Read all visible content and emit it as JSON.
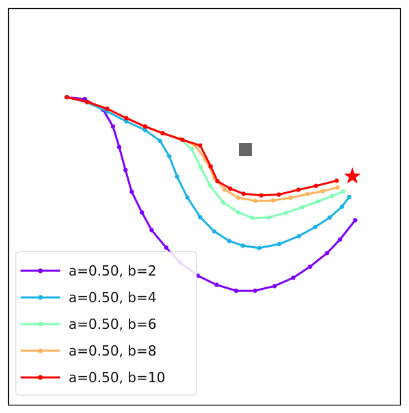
{
  "chart_data": {
    "type": "line",
    "title": "",
    "xlabel": "",
    "ylabel": "",
    "xlim": [
      0,
      100
    ],
    "ylim": [
      0,
      100
    ],
    "grid": false,
    "axes_ticks": false,
    "legend_position": "lower-left",
    "obstacle": {
      "x": 60.5,
      "y": 64.5,
      "color": "#666666",
      "shape": "square"
    },
    "goal": {
      "x": 87.8,
      "y": 57.7,
      "color": "#ff0000",
      "shape": "star"
    },
    "series": [
      {
        "name": "a=0.50, b=2",
        "color": "#7f00ff",
        "points": [
          [
            14.8,
            77.7
          ],
          [
            19.4,
            77.2
          ],
          [
            24.1,
            74.5
          ],
          [
            26.6,
            70.3
          ],
          [
            28.2,
            65.1
          ],
          [
            29.8,
            59.3
          ],
          [
            31.4,
            53.8
          ],
          [
            34.0,
            48.6
          ],
          [
            36.5,
            44.1
          ],
          [
            40.2,
            39.7
          ],
          [
            43.8,
            35.9
          ],
          [
            48.3,
            32.6
          ],
          [
            53.1,
            30.3
          ],
          [
            58.1,
            28.8
          ],
          [
            62.9,
            28.8
          ],
          [
            67.9,
            30.0
          ],
          [
            72.7,
            32.1
          ],
          [
            77.0,
            34.9
          ],
          [
            81.3,
            38.3
          ],
          [
            84.6,
            41.7
          ],
          [
            88.5,
            46.6
          ]
        ]
      },
      {
        "name": "a=0.50, b=4",
        "color": "#1ab2e8",
        "points": [
          [
            14.8,
            77.7
          ],
          [
            20.0,
            76.4
          ],
          [
            25.1,
            74.1
          ],
          [
            30.0,
            71.6
          ],
          [
            34.8,
            69.4
          ],
          [
            38.6,
            66.7
          ],
          [
            41.0,
            62.8
          ],
          [
            43.0,
            57.6
          ],
          [
            45.6,
            52.4
          ],
          [
            48.9,
            47.4
          ],
          [
            52.5,
            43.8
          ],
          [
            56.3,
            41.4
          ],
          [
            59.8,
            40.2
          ],
          [
            64.0,
            39.6
          ],
          [
            69.1,
            40.6
          ],
          [
            74.1,
            42.6
          ],
          [
            78.3,
            44.9
          ],
          [
            82.0,
            47.3
          ],
          [
            85.1,
            50.0
          ],
          [
            87.0,
            52.5
          ]
        ]
      },
      {
        "name": "a=0.50, b=6",
        "color": "#80ffb4",
        "points": [
          [
            14.8,
            77.7
          ],
          [
            20.0,
            76.5
          ],
          [
            25.1,
            74.8
          ],
          [
            30.0,
            72.4
          ],
          [
            34.8,
            70.3
          ],
          [
            39.3,
            68.6
          ],
          [
            43.8,
            67.2
          ],
          [
            46.7,
            64.6
          ],
          [
            49.0,
            60.0
          ],
          [
            51.4,
            55.4
          ],
          [
            54.8,
            51.1
          ],
          [
            58.6,
            48.6
          ],
          [
            62.2,
            47.2
          ],
          [
            66.3,
            47.3
          ],
          [
            70.8,
            48.5
          ],
          [
            75.0,
            49.9
          ],
          [
            79.0,
            51.4
          ],
          [
            82.6,
            52.7
          ],
          [
            85.5,
            53.9
          ]
        ]
      },
      {
        "name": "a=0.50, b=8",
        "color": "#ffb360",
        "points": [
          [
            14.8,
            77.7
          ],
          [
            20.0,
            76.5
          ],
          [
            25.1,
            74.8
          ],
          [
            30.0,
            72.4
          ],
          [
            34.8,
            70.3
          ],
          [
            39.3,
            68.6
          ],
          [
            43.8,
            67.2
          ],
          [
            47.5,
            65.6
          ],
          [
            50.3,
            61.9
          ],
          [
            52.6,
            57.3
          ],
          [
            55.1,
            54.4
          ],
          [
            58.6,
            52.3
          ],
          [
            63.0,
            51.5
          ],
          [
            67.5,
            51.6
          ],
          [
            72.0,
            52.3
          ],
          [
            76.3,
            53.2
          ],
          [
            80.3,
            54.0
          ],
          [
            84.0,
            54.9
          ]
        ]
      },
      {
        "name": "a=0.50, b=10",
        "color": "#ff0000",
        "points": [
          [
            14.8,
            77.7
          ],
          [
            20.0,
            76.5
          ],
          [
            25.1,
            74.8
          ],
          [
            30.0,
            72.4
          ],
          [
            34.8,
            70.3
          ],
          [
            39.3,
            68.6
          ],
          [
            44.4,
            66.9
          ],
          [
            48.9,
            65.5
          ],
          [
            51.6,
            60.2
          ],
          [
            53.3,
            56.5
          ],
          [
            56.6,
            54.6
          ],
          [
            60.0,
            53.3
          ],
          [
            64.5,
            52.9
          ],
          [
            69.0,
            53.1
          ],
          [
            74.0,
            54.3
          ],
          [
            78.5,
            55.3
          ],
          [
            83.8,
            56.6
          ]
        ]
      }
    ]
  }
}
